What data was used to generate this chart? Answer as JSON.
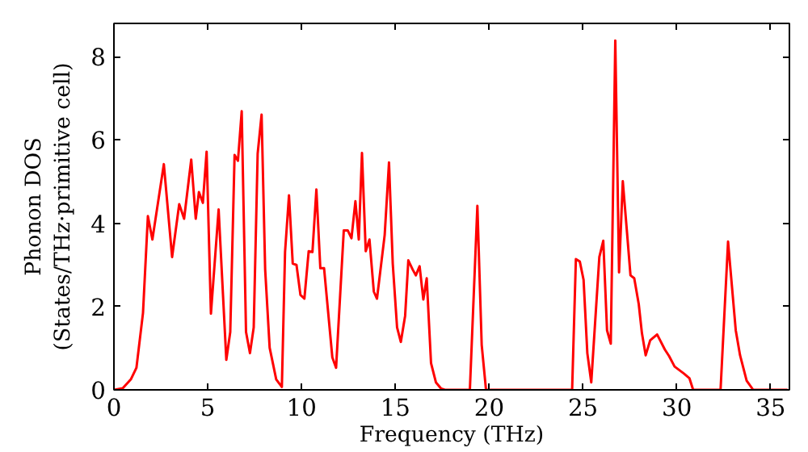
{
  "chart_data": {
    "type": "line",
    "xlabel": "Frequency (THz)",
    "ylabel": "Phonon DOS\n(States/THz·primitive cell)",
    "xlim": [
      0,
      36
    ],
    "ylim": [
      0,
      8.8
    ],
    "xticks": [
      0,
      5,
      10,
      15,
      20,
      25,
      30,
      35
    ],
    "yticks": [
      0,
      2,
      4,
      6,
      8
    ],
    "grid": false,
    "series": [
      {
        "color": "#ff0000",
        "x": [
          0,
          0.47,
          0.9,
          1.2,
          1.55,
          1.81,
          2.05,
          2.66,
          3.1,
          3.48,
          3.74,
          4.12,
          4.36,
          4.53,
          4.74,
          4.94,
          5.17,
          5.58,
          5.99,
          6.2,
          6.43,
          6.61,
          6.81,
          7.04,
          7.25,
          7.45,
          7.66,
          7.87,
          8.06,
          8.3,
          8.65,
          8.95,
          9.12,
          9.33,
          9.53,
          9.73,
          9.94,
          10.15,
          10.38,
          10.58,
          10.79,
          11.0,
          11.2,
          11.64,
          11.84,
          12.25,
          12.46,
          12.66,
          12.87,
          13.05,
          13.22,
          13.42,
          13.62,
          13.85,
          14.02,
          14.43,
          14.66,
          14.86,
          15.09,
          15.29,
          15.52,
          15.69,
          15.92,
          16.09,
          16.29,
          16.49,
          16.67,
          16.9,
          17.16,
          17.44,
          17.64,
          18.97,
          19.37,
          19.6,
          19.83,
          24.42,
          24.62,
          24.83,
          25.03,
          25.23,
          25.44,
          25.87,
          26.08,
          26.28,
          26.48,
          26.72,
          26.92,
          27.12,
          27.33,
          27.53,
          27.73,
          27.97,
          28.14,
          28.34,
          28.58,
          28.95,
          29.36,
          29.59,
          29.88,
          30.38,
          30.67,
          30.87,
          32.33,
          32.73,
          33.14,
          33.37,
          33.72,
          34.07,
          35.9
        ],
        "values": [
          0,
          0.04,
          0.25,
          0.53,
          1.85,
          4.17,
          3.61,
          5.42,
          3.19,
          4.46,
          4.11,
          5.53,
          4.11,
          4.75,
          4.49,
          5.72,
          1.83,
          4.33,
          0.72,
          1.39,
          5.64,
          5.5,
          6.69,
          1.39,
          0.88,
          1.5,
          5.67,
          6.61,
          2.89,
          1.01,
          0.25,
          0.07,
          3.31,
          4.67,
          3.03,
          3.0,
          2.28,
          2.19,
          3.33,
          3.31,
          4.81,
          2.92,
          2.92,
          0.78,
          0.53,
          3.83,
          3.83,
          3.64,
          4.53,
          3.61,
          5.69,
          3.33,
          3.61,
          2.36,
          2.19,
          3.72,
          5.46,
          3.03,
          1.5,
          1.15,
          1.78,
          3.11,
          2.89,
          2.75,
          2.97,
          2.17,
          2.68,
          0.64,
          0.18,
          0.03,
          0,
          0,
          4.42,
          1.08,
          0,
          0,
          3.14,
          3.08,
          2.64,
          0.88,
          0.18,
          3.19,
          3.58,
          1.43,
          1.11,
          8.39,
          2.82,
          5.01,
          3.86,
          2.75,
          2.68,
          2.06,
          1.36,
          0.83,
          1.19,
          1.33,
          0.97,
          0.81,
          0.56,
          0.39,
          0.28,
          0,
          0,
          3.56,
          1.43,
          0.83,
          0.22,
          0,
          0
        ]
      }
    ]
  }
}
